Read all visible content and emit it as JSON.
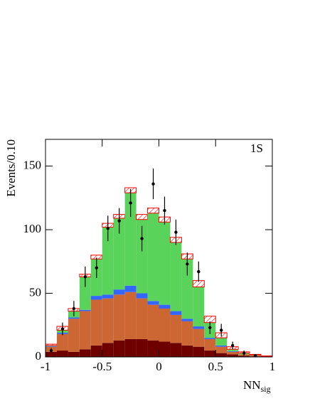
{
  "chart_data": {
    "type": "stacked-histogram",
    "label": "1S",
    "ylabel": "Events/0.10",
    "xlabel": "NN",
    "xlabel_subscript": "sig",
    "bins": [
      -1,
      -0.9,
      -0.8,
      -0.7,
      -0.6,
      -0.5,
      -0.4,
      -0.3,
      -0.2,
      -0.1,
      0,
      0.1,
      0.2,
      0.3,
      0.4,
      0.5,
      0.6,
      0.7,
      0.8,
      0.9,
      1
    ],
    "series": [
      {
        "color": "#6e0000",
        "values": [
          4,
          5,
          4,
          6,
          9,
          11,
          13,
          14,
          14,
          13,
          12,
          11,
          9,
          8,
          5,
          3,
          2,
          1,
          0.5,
          0.3
        ]
      },
      {
        "color": "#cc6633",
        "values": [
          4,
          13,
          26,
          30,
          36,
          35,
          36,
          37,
          32,
          28,
          26,
          22,
          19,
          14,
          9,
          5,
          2,
          1,
          0.5,
          0.2
        ]
      },
      {
        "color": "#3366ff",
        "values": [
          0.5,
          1,
          1,
          1,
          3,
          3,
          4,
          5,
          4,
          3,
          3,
          3,
          2,
          2,
          1,
          1,
          0.5,
          0,
          0,
          0
        ]
      },
      {
        "color": "#5ad35a",
        "values": [
          0.5,
          2,
          5,
          26,
          29,
          53,
          56,
          73,
          58,
          69,
          65,
          54,
          47,
          31,
          12,
          6,
          1.5,
          1,
          0.5,
          0
        ]
      },
      {
        "color": "#ff0000",
        "hatch": true,
        "values": [
          1,
          3,
          2,
          2,
          3,
          3,
          3,
          4,
          4,
          4,
          4,
          4,
          4,
          5,
          5,
          4,
          2,
          1,
          0.5,
          0.3
        ]
      }
    ],
    "points": {
      "color": "#000000",
      "x": [
        -0.95,
        -0.85,
        -0.75,
        -0.65,
        -0.55,
        -0.45,
        -0.35,
        -0.25,
        -0.15,
        -0.05,
        0.05,
        0.15,
        0.25,
        0.35,
        0.45,
        0.55,
        0.65,
        0.75,
        0.85
      ],
      "values": [
        5,
        22,
        38,
        63,
        70,
        101,
        107,
        121,
        93,
        136,
        115,
        98,
        73,
        67,
        23,
        21,
        9,
        3,
        1
      ],
      "errors": [
        2,
        5,
        6,
        8,
        8,
        10,
        10,
        11,
        10,
        12,
        11,
        10,
        9,
        8,
        5,
        5,
        3,
        2,
        1
      ]
    },
    "xlim": [
      -1,
      1
    ],
    "xticks": [
      -1,
      -0.5,
      0,
      0.5,
      1
    ],
    "ylim": [
      0,
      171
    ],
    "yticks": [
      0,
      50,
      100,
      150
    ],
    "grid": false
  }
}
